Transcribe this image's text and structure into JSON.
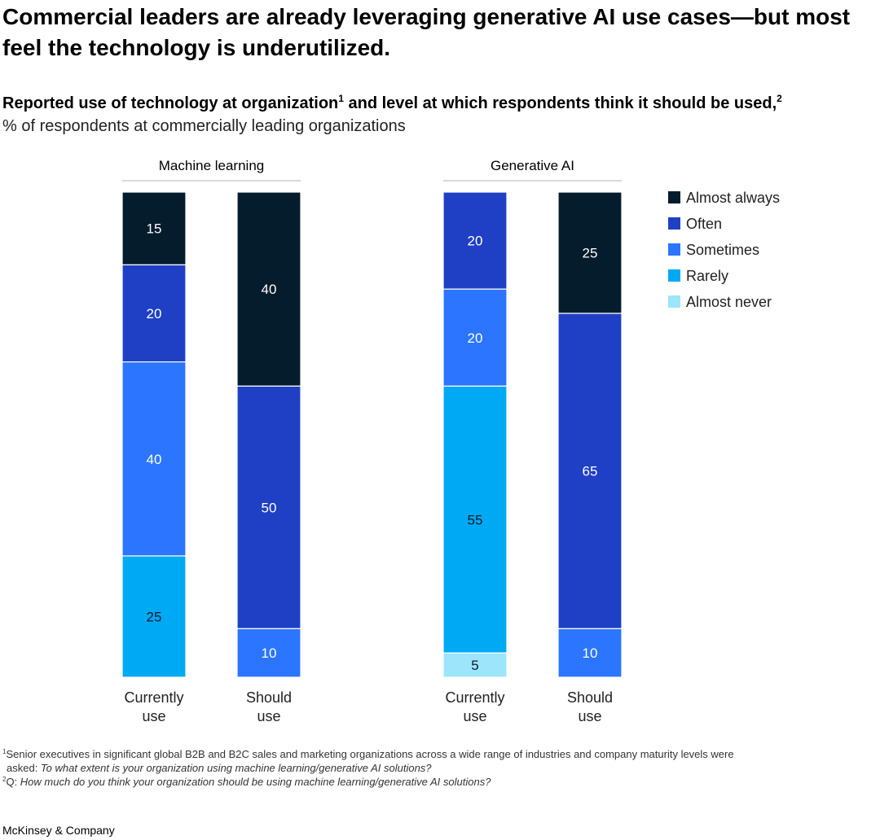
{
  "title": "Commercial leaders are already leveraging generative AI use cases—but most feel the technology is underutilized.",
  "subtitle_main": "Reported use of technology at organization",
  "subtitle_sup1": "1",
  "subtitle_mid": " and level at which respondents think it should be used,",
  "subtitle_sup2": "2",
  "units": "% of respondents at commercially leading organizations",
  "chart_data": {
    "type": "bar",
    "stacked": true,
    "legend_position": "right",
    "legend": [
      "Almost always",
      "Often",
      "Sometimes",
      "Rarely",
      "Almost never"
    ],
    "colors": {
      "Almost always": "#051c2c",
      "Often": "#1f40c5",
      "Sometimes": "#2b75ff",
      "Rarely": "#00a9f4",
      "Almost never": "#9ce5fb"
    },
    "label_colors": {
      "Almost always": "#ffffff",
      "Often": "#ffffff",
      "Sometimes": "#ffffff",
      "Rarely": "#051c2c",
      "Almost never": "#051c2c"
    },
    "groups": [
      {
        "title": "Machine learning",
        "bars": [
          {
            "label_line1": "Currently",
            "label_line2": "use",
            "segments": [
              {
                "category": "Almost always",
                "value": 15
              },
              {
                "category": "Often",
                "value": 20
              },
              {
                "category": "Sometimes",
                "value": 40
              },
              {
                "category": "Rarely",
                "value": 25
              }
            ]
          },
          {
            "label_line1": "Should",
            "label_line2": "use",
            "segments": [
              {
                "category": "Almost always",
                "value": 40
              },
              {
                "category": "Often",
                "value": 50
              },
              {
                "category": "Sometimes",
                "value": 10
              }
            ]
          }
        ]
      },
      {
        "title": "Generative AI",
        "bars": [
          {
            "label_line1": "Currently",
            "label_line2": "use",
            "segments": [
              {
                "category": "Often",
                "value": 20
              },
              {
                "category": "Sometimes",
                "value": 20
              },
              {
                "category": "Rarely",
                "value": 55
              },
              {
                "category": "Almost never",
                "value": 5
              }
            ]
          },
          {
            "label_line1": "Should",
            "label_line2": "use",
            "segments": [
              {
                "category": "Almost always",
                "value": 25
              },
              {
                "category": "Often",
                "value": 65
              },
              {
                "category": "Sometimes",
                "value": 10
              }
            ]
          }
        ]
      }
    ]
  },
  "footnotes": {
    "fn1_sup": "1",
    "fn1_text": "Senior executives in significant global B2B and B2C sales and marketing organizations across a wide range of industries and company maturity levels were",
    "fn1_line2_prefix": "asked: ",
    "fn1_question": "To what extent is your organization using machine learning/generative AI solutions?",
    "fn2_sup": "2",
    "fn2_prefix": "Q: ",
    "fn2_question": "How much do you think your organization should be using machine learning/generative AI solutions?"
  },
  "source": "McKinsey & Company"
}
